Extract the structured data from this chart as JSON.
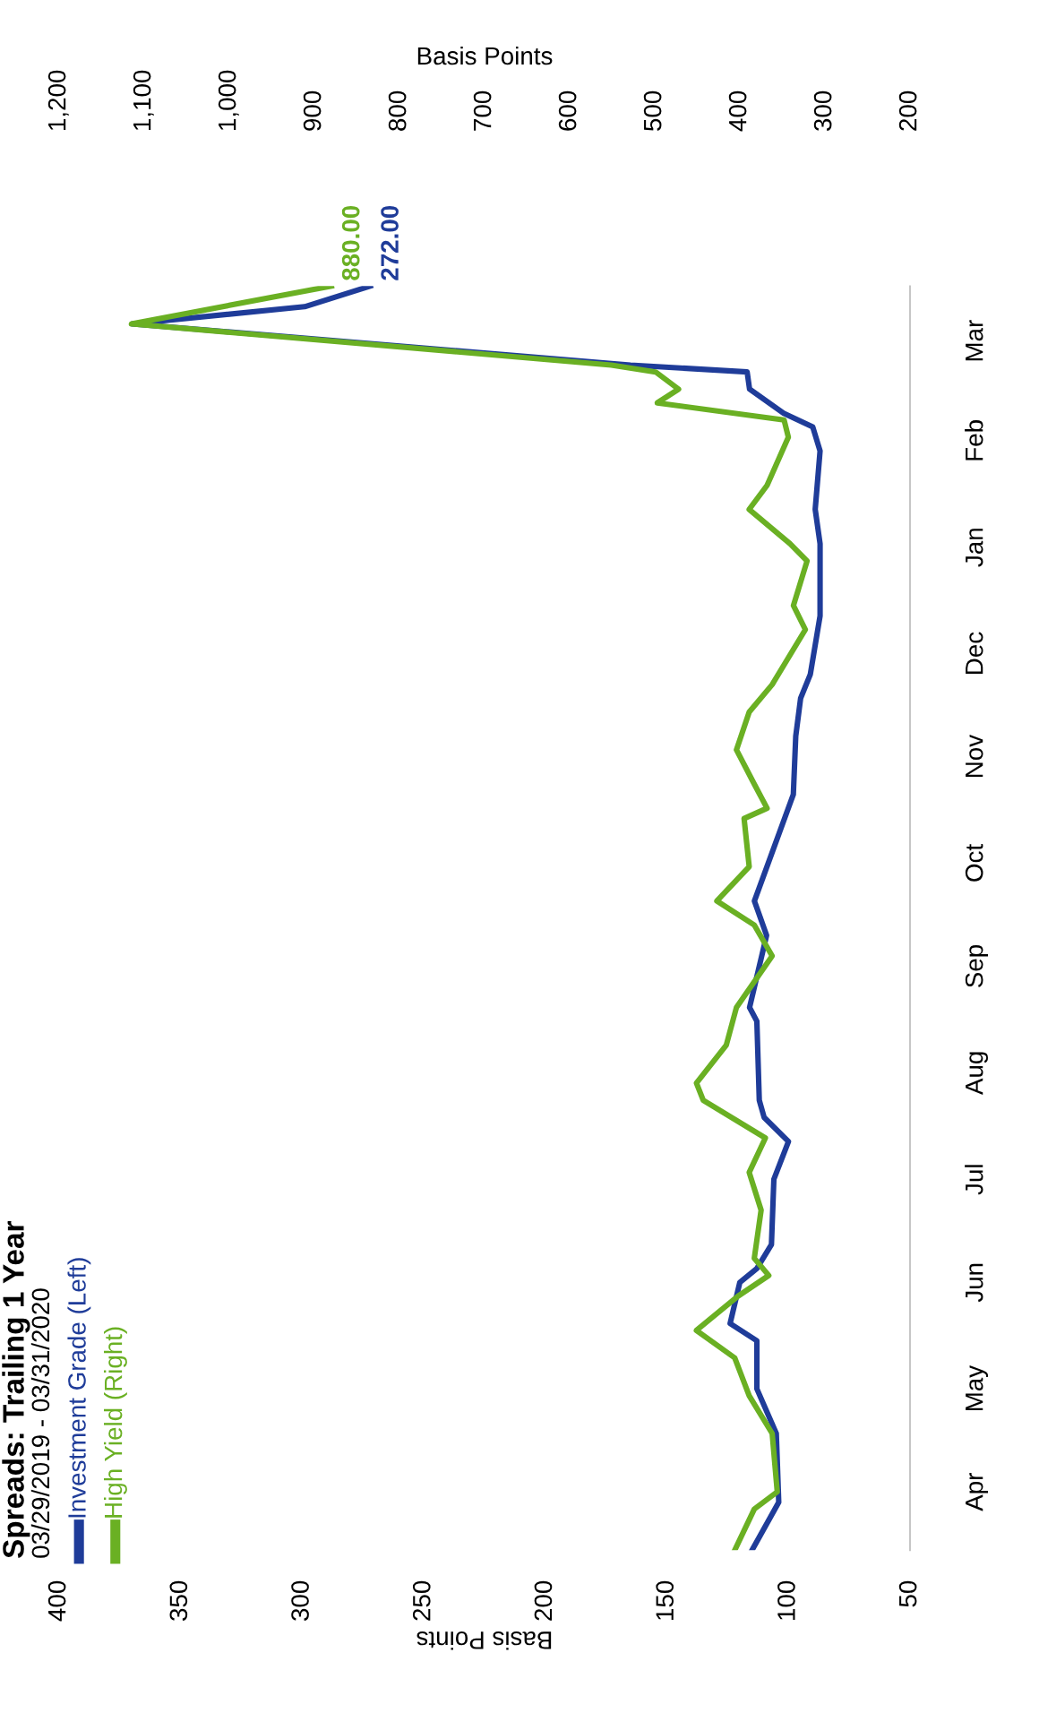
{
  "chart_data": {
    "type": "line",
    "title": "Spreads: Trailing 1 Year",
    "subtitle": "03/29/2019 - 03/31/2020",
    "orientation": "horizontal",
    "ylim": [
      "2019-03-29",
      "2020-03-31"
    ],
    "xlabel": "Basis Points",
    "x2label": "Basis Points",
    "yticks": [
      {
        "value": "2019-04-15",
        "label": "Apr"
      },
      {
        "value": "2019-05-15",
        "label": "May"
      },
      {
        "value": "2019-06-15",
        "label": "Jun"
      },
      {
        "value": "2019-07-15",
        "label": "Jul"
      },
      {
        "value": "2019-08-15",
        "label": "Aug"
      },
      {
        "value": "2019-09-15",
        "label": "Sep"
      },
      {
        "value": "2019-10-15",
        "label": "Oct"
      },
      {
        "value": "2019-11-15",
        "label": "Nov"
      },
      {
        "value": "2019-12-15",
        "label": "Dec"
      },
      {
        "value": "2020-01-15",
        "label": "Jan"
      },
      {
        "value": "2020-02-15",
        "label": "Feb"
      },
      {
        "value": "2020-03-15",
        "label": "Mar"
      }
    ],
    "xlim": [
      400,
      50
    ],
    "xticks": [
      400,
      350,
      300,
      250,
      200,
      150,
      100,
      50
    ],
    "x2lim": [
      1200,
      200
    ],
    "x2ticks": [
      200,
      300,
      400,
      500,
      600,
      700,
      800,
      900,
      {
        "value": 1000,
        "label": "1,000"
      },
      {
        "value": 1100,
        "label": "1,100"
      },
      {
        "value": 1200,
        "label": "1,200"
      }
    ],
    "grid": false,
    "legend": "bottom left",
    "line_style": "solid",
    "marker": "none",
    "series": [
      {
        "name": "Investment Grade (Left)",
        "color": "#1f3c99",
        "x": [
          "2019-03-29",
          "2019-04-12",
          "2019-05-02",
          "2019-05-15",
          "2019-05-29",
          "2019-06-03",
          "2019-06-15",
          "2019-06-19",
          "2019-06-26",
          "2019-07-15",
          "2019-07-26",
          "2019-08-02",
          "2019-08-07",
          "2019-08-30",
          "2019-09-03",
          "2019-09-24",
          "2019-10-04",
          "2019-11-04",
          "2019-11-21",
          "2019-12-02",
          "2019-12-09",
          "2019-12-26",
          "2020-01-16",
          "2020-01-26",
          "2020-02-12",
          "2020-02-19",
          "2020-02-23",
          "2020-03-01",
          "2020-03-06",
          "2020-03-08",
          "2020-03-20",
          "2020-03-25",
          "2020-03-31"
        ],
        "values": [
          115,
          104,
          105,
          113,
          113,
          124,
          120,
          113,
          107,
          106,
          100,
          110,
          112,
          113,
          116,
          109,
          114,
          98,
          97,
          95,
          91,
          87,
          87,
          89,
          87,
          90,
          102,
          116,
          117,
          165,
          370,
          299,
          272
        ],
        "value_labels": [
          null,
          null,
          null,
          null,
          null,
          null,
          null,
          null,
          null,
          null,
          null,
          null,
          null,
          null,
          null,
          null,
          null,
          null,
          null,
          null,
          null,
          null,
          null,
          null,
          null,
          null,
          null,
          null,
          null,
          null,
          null,
          null,
          "272.00"
        ]
      },
      {
        "name": "High Yield (Right)",
        "color": "#6ab023",
        "axis": "x2",
        "x": [
          "2019-03-29",
          "2019-04-10",
          "2019-04-15",
          "2019-05-02",
          "2019-05-13",
          "2019-05-24",
          "2019-06-01",
          "2019-06-11",
          "2019-06-17",
          "2019-06-22",
          "2019-07-06",
          "2019-07-17",
          "2019-07-27",
          "2019-08-07",
          "2019-08-12",
          "2019-08-23",
          "2019-09-03",
          "2019-09-18",
          "2019-09-27",
          "2019-10-04",
          "2019-10-14",
          "2019-10-28",
          "2019-10-31",
          "2019-11-07",
          "2019-11-17",
          "2019-11-28",
          "2019-12-06",
          "2019-12-22",
          "2019-12-29",
          "2020-01-11",
          "2020-01-16",
          "2020-01-26",
          "2020-02-02",
          "2020-02-16",
          "2020-02-21",
          "2020-02-26",
          "2020-03-01",
          "2020-03-06",
          "2020-03-08",
          "2020-03-20",
          "2020-03-31"
        ],
        "values": [
          406,
          383,
          356,
          362,
          389,
          406,
          451,
          402,
          366,
          383,
          375,
          389,
          370,
          443,
          451,
          416,
          404,
          362,
          383,
          427,
          389,
          395,
          368,
          383,
          404,
          389,
          362,
          323,
          337,
          321,
          341,
          389,
          368,
          343,
          348,
          497,
          472,
          499,
          551,
          1115,
          880
        ],
        "value_labels": [
          null,
          null,
          null,
          null,
          null,
          null,
          null,
          null,
          null,
          null,
          null,
          null,
          null,
          null,
          null,
          null,
          null,
          null,
          null,
          null,
          null,
          null,
          null,
          null,
          null,
          null,
          null,
          null,
          null,
          null,
          null,
          null,
          null,
          null,
          null,
          null,
          null,
          null,
          null,
          null,
          "880.00"
        ]
      }
    ]
  }
}
